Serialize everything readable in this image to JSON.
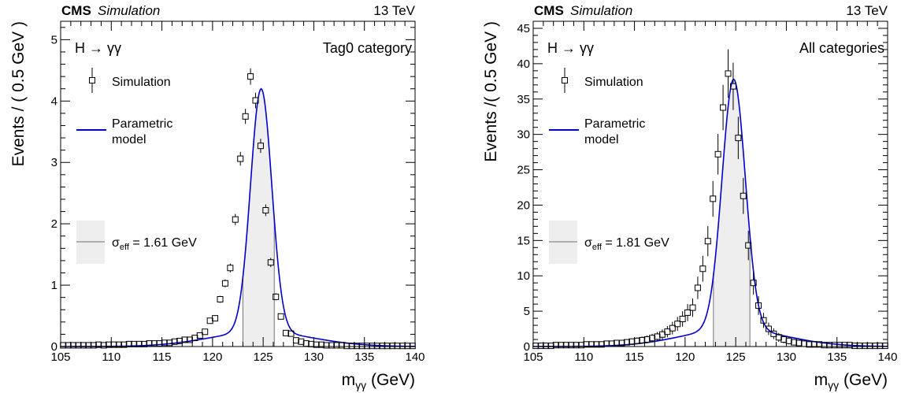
{
  "chart_data": [
    {
      "type": "scatter",
      "experiment": "CMS",
      "label": "Simulation",
      "energy": "13 TeV",
      "process": "H → γγ",
      "category": "Tag0 category",
      "ylabel": "Events / ( 0.5 GeV )",
      "xlabel_main": "m",
      "xlabel_sub": "γγ",
      "xlabel_unit": " (GeV)",
      "xlim": [
        105,
        140
      ],
      "ylim": [
        0,
        5.3
      ],
      "xticks": [
        105,
        110,
        115,
        120,
        125,
        130,
        135,
        140
      ],
      "yticks": [
        0,
        1,
        2,
        3,
        4,
        5
      ],
      "legend": {
        "simulation": "Simulation",
        "model_line1": "Parametric",
        "model_line2": "model",
        "sigma_symbol": "σ",
        "sigma_sub": "eff",
        "sigma_value": " = 1.61 GeV"
      },
      "colors": {
        "model": "#0000cc",
        "band": "#eeeeee",
        "band_edge": "#888888"
      },
      "model": {
        "peak": 124.8,
        "height": 4.2,
        "sigma": 1.05,
        "tail_rel": 0.06,
        "tail_sigma": 5.0
      },
      "band": [
        123.0,
        126.1
      ],
      "series": [
        {
          "x": [
            105.25,
            105.75,
            106.25,
            106.75,
            107.25,
            107.75,
            108.25,
            108.75,
            109.25,
            109.75,
            110.25,
            110.75,
            111.25,
            111.75,
            112.25,
            112.75,
            113.25,
            113.75,
            114.25,
            114.75,
            115.25,
            115.75,
            116.25,
            116.75,
            117.25,
            117.75,
            118.25,
            118.75,
            119.25,
            119.75,
            120.25,
            120.75,
            121.25,
            121.75,
            122.25,
            122.75,
            123.25,
            123.75,
            124.25,
            124.75,
            125.25,
            125.75,
            126.25,
            126.75,
            127.25,
            127.75,
            128.25,
            128.75,
            129.25,
            129.75,
            130.25,
            130.75,
            131.25,
            131.75,
            132.25,
            132.75,
            133.25,
            133.75,
            134.25,
            134.75,
            135.25,
            135.75,
            136.25,
            136.75,
            137.25,
            137.75,
            138.25,
            138.75,
            139.25,
            139.75
          ],
          "y": [
            0.02,
            0.02,
            0.02,
            0.02,
            0.02,
            0.02,
            0.02,
            0.03,
            0.02,
            0.03,
            0.03,
            0.03,
            0.03,
            0.04,
            0.04,
            0.04,
            0.04,
            0.05,
            0.05,
            0.05,
            0.06,
            0.06,
            0.08,
            0.09,
            0.11,
            0.11,
            0.14,
            0.18,
            0.24,
            0.42,
            0.46,
            0.77,
            1.03,
            1.28,
            2.07,
            3.06,
            3.75,
            4.4,
            4.01,
            3.27,
            2.22,
            1.37,
            0.81,
            0.49,
            0.22,
            0.21,
            0.1,
            0.08,
            0.05,
            0.04,
            0.03,
            0.03,
            0.02,
            0.02,
            0.02,
            0.02,
            0.01,
            0.01,
            0.01,
            0.01,
            0.01,
            0.01,
            0.01,
            0.01,
            0.01,
            0.01,
            0.01,
            0.01,
            0.01,
            0.01
          ]
        }
      ]
    },
    {
      "type": "scatter",
      "experiment": "CMS",
      "label": "Simulation",
      "energy": "13 TeV",
      "process": "H → γγ",
      "category": "All categories",
      "ylabel": "Events /( 0.5 GeV )",
      "xlabel_main": "m",
      "xlabel_sub": "γγ",
      "xlabel_unit": " (GeV)",
      "xlim": [
        105,
        140
      ],
      "ylim": [
        0,
        46
      ],
      "xticks": [
        105,
        110,
        115,
        120,
        125,
        130,
        135,
        140
      ],
      "yticks": [
        0,
        5,
        10,
        15,
        20,
        25,
        30,
        35,
        40,
        45
      ],
      "legend": {
        "simulation": "Simulation",
        "model_line1": "Parametric",
        "model_line2": "model",
        "sigma_symbol": "σ",
        "sigma_sub": "eff",
        "sigma_value": " = 1.81 GeV"
      },
      "colors": {
        "model": "#0000cc",
        "band": "#eeeeee",
        "band_edge": "#888888"
      },
      "model": {
        "peak": 124.8,
        "height": 37.8,
        "sigma": 1.15,
        "tail_rel": 0.07,
        "tail_sigma": 5.0
      },
      "band": [
        122.8,
        126.4
      ],
      "series": [
        {
          "x": [
            105.25,
            105.75,
            106.25,
            106.75,
            107.25,
            107.75,
            108.25,
            108.75,
            109.25,
            109.75,
            110.25,
            110.75,
            111.25,
            111.75,
            112.25,
            112.75,
            113.25,
            113.75,
            114.25,
            114.75,
            115.25,
            115.75,
            116.25,
            116.75,
            117.25,
            117.75,
            118.25,
            118.75,
            119.25,
            119.75,
            120.25,
            120.75,
            121.25,
            121.75,
            122.25,
            122.75,
            123.25,
            123.75,
            124.25,
            124.75,
            125.25,
            125.75,
            126.25,
            126.75,
            127.25,
            127.75,
            128.25,
            128.75,
            129.25,
            129.75,
            130.25,
            130.75,
            131.25,
            131.75,
            132.25,
            132.75,
            133.25,
            133.75,
            134.25,
            134.75,
            135.25,
            135.75,
            136.25,
            136.75,
            137.25,
            137.75,
            138.25,
            138.75,
            139.25,
            139.75
          ],
          "y": [
            0.1,
            0.1,
            0.1,
            0.1,
            0.2,
            0.2,
            0.2,
            0.2,
            0.2,
            0.2,
            0.3,
            0.3,
            0.3,
            0.3,
            0.4,
            0.4,
            0.5,
            0.5,
            0.6,
            0.7,
            0.8,
            0.9,
            1.0,
            1.2,
            1.4,
            1.7,
            2.1,
            2.6,
            3.2,
            3.9,
            4.8,
            5.5,
            8.3,
            11.0,
            14.9,
            20.9,
            27.2,
            33.8,
            38.6,
            36.8,
            29.5,
            21.3,
            14.3,
            9.0,
            5.8,
            3.7,
            2.5,
            1.8,
            1.3,
            1.0,
            0.8,
            0.6,
            0.5,
            0.4,
            0.3,
            0.3,
            0.3,
            0.2,
            0.2,
            0.2,
            0.2,
            0.2,
            0.2,
            0.1,
            0.1,
            0.1,
            0.1,
            0.1,
            0.1,
            0.1
          ]
        }
      ]
    }
  ]
}
